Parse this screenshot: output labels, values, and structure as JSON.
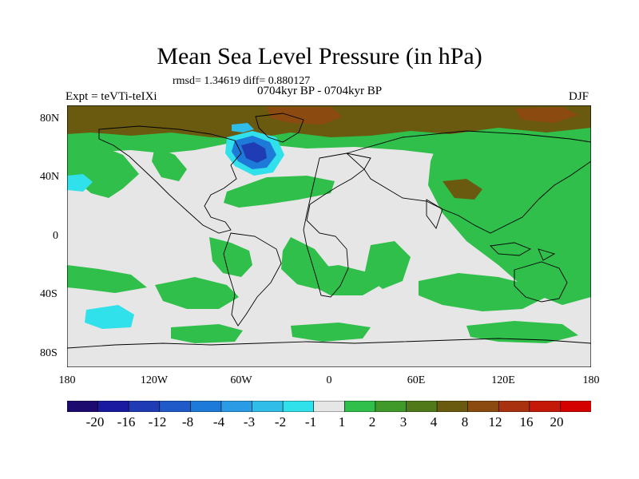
{
  "header": {
    "title": "Mean Sea Level Pressure (in hPa)",
    "stats": "rmsd= 1.34619 diff= 0.880127",
    "period": "0704kyr BP - 0704kyr BP",
    "experiment": "Expt = teVTi-teIXi",
    "season": "DJF"
  },
  "axes": {
    "lat_labels": [
      "80N",
      "40N",
      "0",
      "40S",
      "80S"
    ],
    "lon_labels": [
      "180",
      "120W",
      "60W",
      "0",
      "60E",
      "120E",
      "180"
    ]
  },
  "colorbar": {
    "labels": [
      "-20",
      "-16",
      "-12",
      "-8",
      "-4",
      "-3",
      "-2",
      "-1",
      "1",
      "2",
      "3",
      "4",
      "8",
      "12",
      "16",
      "20"
    ],
    "colors": [
      "#1c0a6e",
      "#1a1aa0",
      "#1f3cb4",
      "#1f5ac8",
      "#1e7ad8",
      "#2a9be4",
      "#30bde8",
      "#30e0ea",
      "#e6e6e6",
      "#2fbf4a",
      "#3f9a2a",
      "#507a1a",
      "#6a5a10",
      "#8a4a10",
      "#a83210",
      "#c41808",
      "#d40000"
    ]
  },
  "map_colors": {
    "ocean_neutral": "#e6e6e6",
    "coast": "#000000"
  }
}
